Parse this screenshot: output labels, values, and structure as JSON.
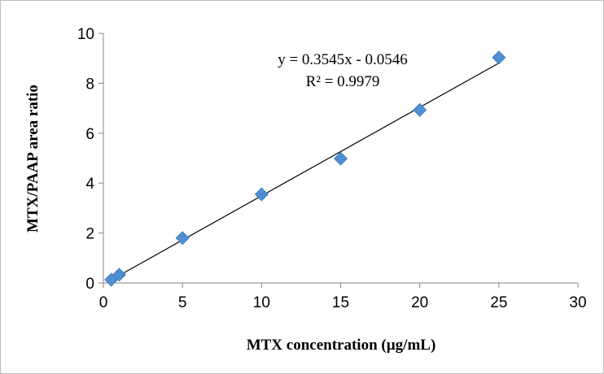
{
  "chart_data": {
    "type": "scatter",
    "xlabel": "MTX concentration (µg/mL)",
    "ylabel": "MTX/PAAP area ratio",
    "xlim": [
      0,
      30
    ],
    "ylim": [
      0,
      10
    ],
    "x_ticks": [
      0,
      5,
      10,
      15,
      20,
      25,
      30
    ],
    "y_ticks": [
      0,
      2,
      4,
      6,
      8,
      10
    ],
    "grid": false,
    "series": [
      {
        "marker": "diamond",
        "color": "#4f8fd0",
        "points": [
          {
            "x": 0.5,
            "y": 0.13
          },
          {
            "x": 1,
            "y": 0.33
          },
          {
            "x": 5,
            "y": 1.8
          },
          {
            "x": 10,
            "y": 3.55
          },
          {
            "x": 15,
            "y": 4.98
          },
          {
            "x": 20,
            "y": 6.93
          },
          {
            "x": 25,
            "y": 9.03
          }
        ]
      }
    ],
    "trendline": {
      "type": "linear",
      "slope": 0.3545,
      "intercept": -0.0546,
      "x_range": [
        0.5,
        25
      ],
      "color": "#000000",
      "equation": "y = 0.3545x - 0.0546",
      "r_squared": "R² = 0.9979"
    }
  }
}
